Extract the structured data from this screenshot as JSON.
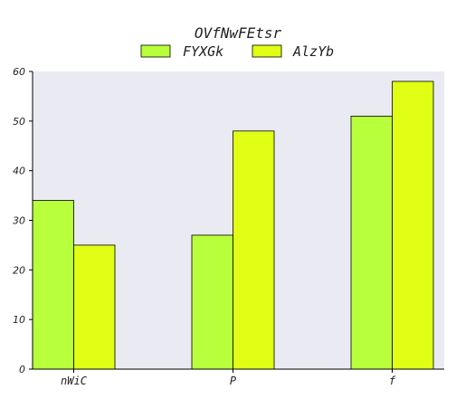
{
  "chart_data": {
    "type": "bar",
    "title": "OVfNwFEtsr",
    "xlabel": "",
    "ylabel": "",
    "categories": [
      "nWiC",
      "P",
      "f"
    ],
    "series": [
      {
        "name": "FYXGk",
        "values": [
          34,
          27,
          51
        ],
        "color": "#b8ff3c"
      },
      {
        "name": "AlzYb",
        "values": [
          25,
          48,
          58
        ],
        "color": "#e0ff14"
      }
    ],
    "ylim": [
      0,
      60
    ],
    "yticks": [
      "0",
      "10",
      "20",
      "30",
      "40",
      "50",
      "60"
    ],
    "grid": false,
    "legend_position": "top-center",
    "plot_background": "#eaeaf2"
  }
}
